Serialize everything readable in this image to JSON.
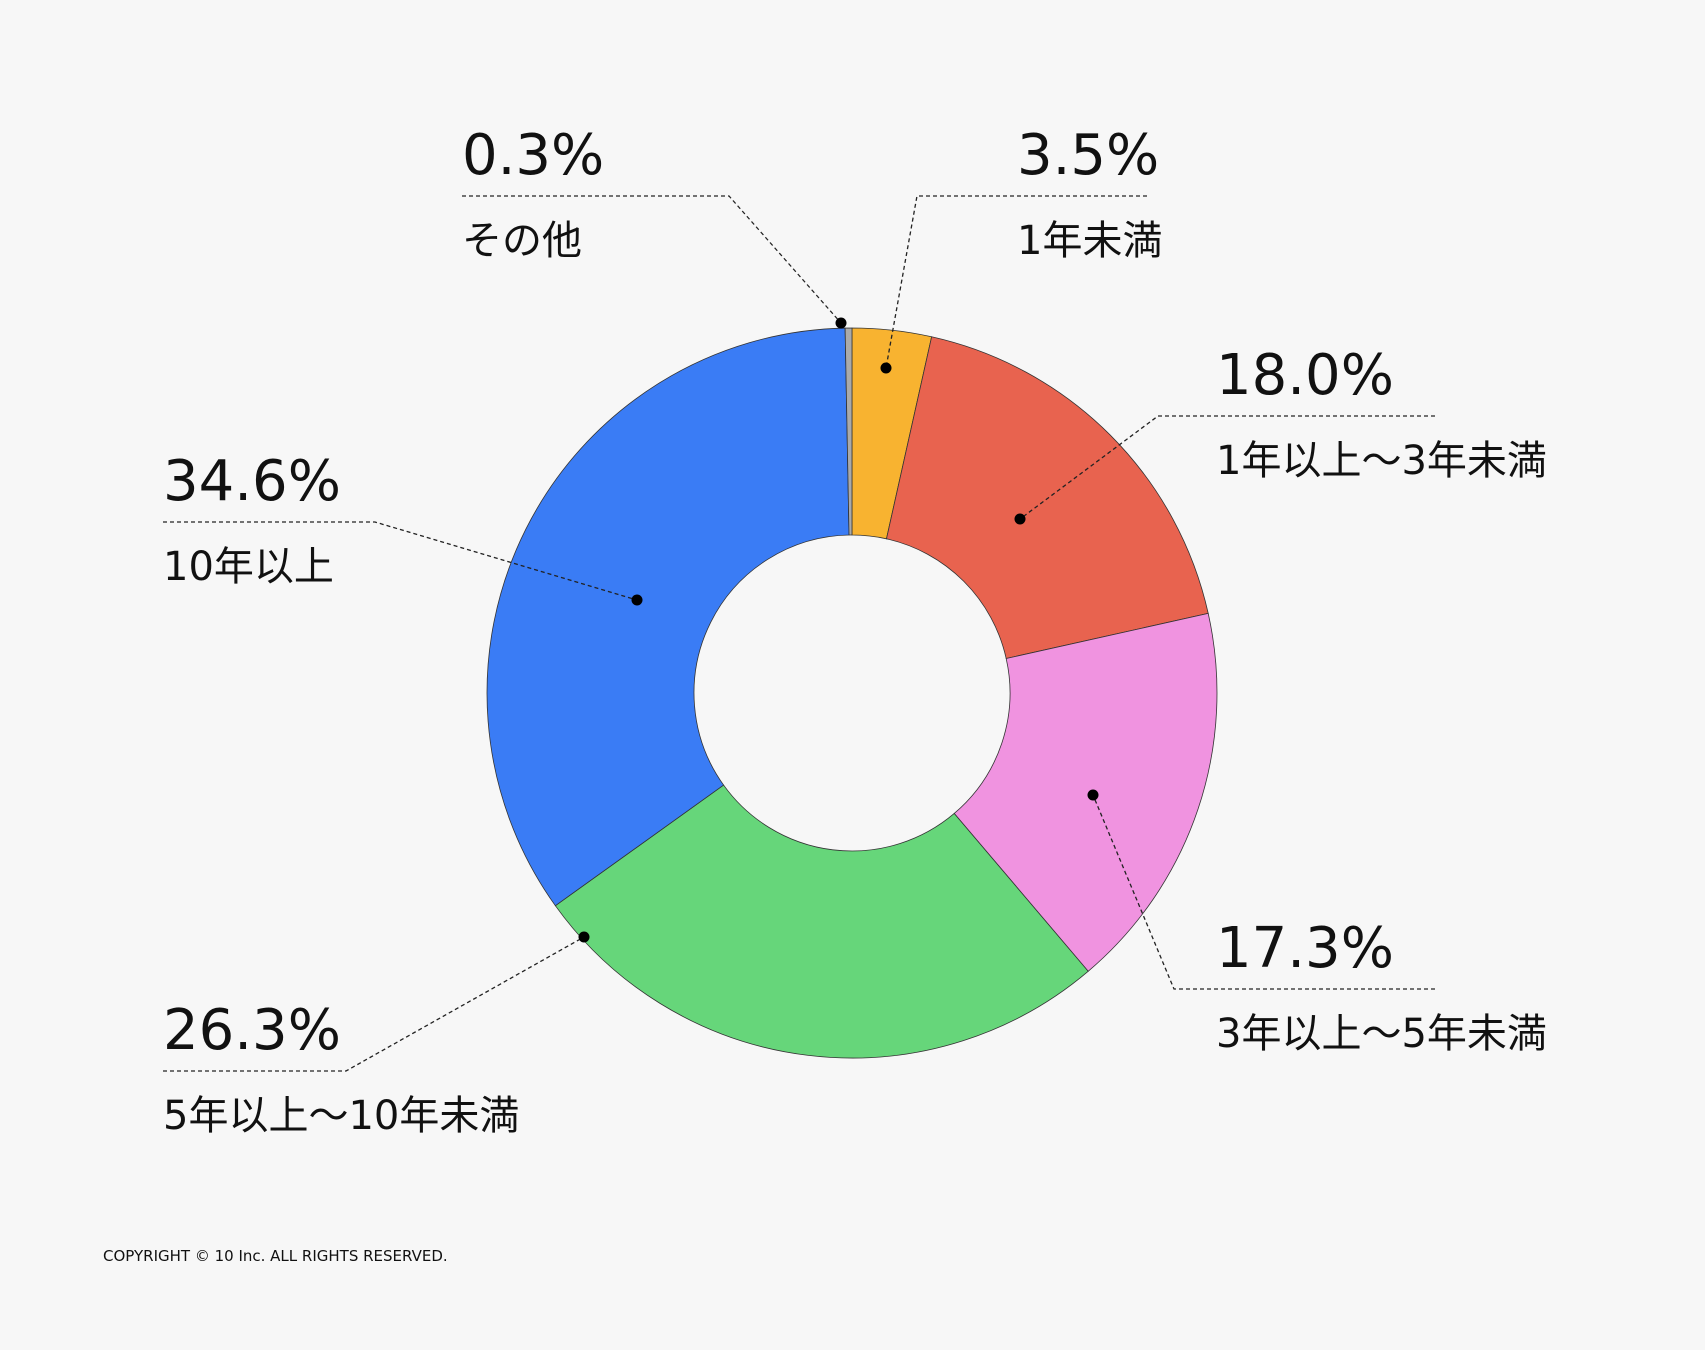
{
  "chart_data": {
    "type": "donut",
    "categories": [
      "1年未満",
      "1年以上〜3年未満",
      "3年以上〜5年未満",
      "5年以上〜10年未満",
      "10年以上",
      "その他"
    ],
    "values": [
      3.5,
      18.0,
      17.3,
      26.3,
      34.6,
      0.3
    ],
    "value_labels": [
      "3.5%",
      "18.0%",
      "17.3%",
      "26.3%",
      "34.6%",
      "0.3%"
    ],
    "colors": [
      "#f8b330",
      "#e8634f",
      "#f093e0",
      "#66d67a",
      "#3a7cf5",
      "#aaaaaa"
    ]
  },
  "copyright": "COPYRIGHT © 10 Inc. ALL RIGHTS RESERVED."
}
